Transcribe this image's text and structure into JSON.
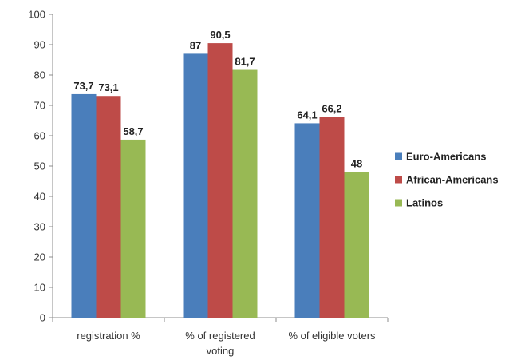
{
  "chart_data": {
    "type": "bar",
    "title": "",
    "xlabel": "",
    "ylabel": "",
    "categories": [
      [
        "registration %"
      ],
      [
        "% of registered",
        "voting"
      ],
      [
        "% of eligible voters"
      ]
    ],
    "series": [
      {
        "name": "Euro-Americans",
        "color": "#4a7ebb",
        "values": [
          73.7,
          87,
          64.1
        ],
        "labels": [
          "73,7",
          "87",
          "64,1"
        ]
      },
      {
        "name": "African-Americans",
        "color": "#be4b48",
        "values": [
          73.1,
          90.5,
          66.2
        ],
        "labels": [
          "73,1",
          "90,5",
          "66,2"
        ]
      },
      {
        "name": "Latinos",
        "color": "#98b954",
        "values": [
          58.7,
          81.7,
          48
        ],
        "labels": [
          "58,7",
          "81,7",
          "48"
        ]
      }
    ],
    "ylim": [
      0,
      100
    ],
    "yticks": [
      0,
      10,
      20,
      30,
      40,
      50,
      60,
      70,
      80,
      90,
      100
    ],
    "grid": false,
    "legend_position": "right"
  }
}
